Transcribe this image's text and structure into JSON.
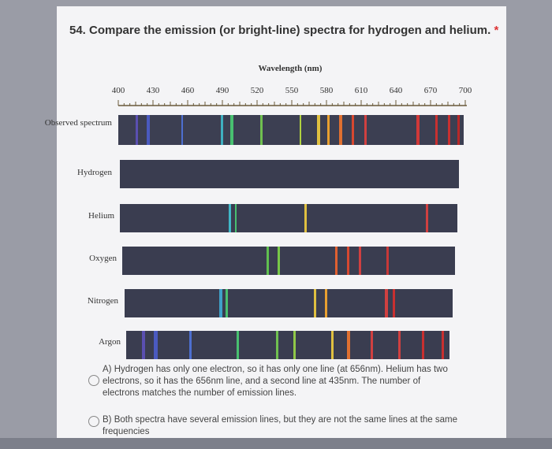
{
  "question": {
    "title": "54. Compare the emission (or bright-line) spectra for hydrogen and helium.",
    "required": "*"
  },
  "axis": {
    "label": "Wavelength (nm)",
    "ticks": [
      "400",
      "430",
      "460",
      "490",
      "520",
      "550",
      "580",
      "610",
      "640",
      "670",
      "700"
    ]
  },
  "spectra": [
    {
      "label": "Observed spectrum"
    },
    {
      "label": "Hydrogen"
    },
    {
      "label": "Helium"
    },
    {
      "label": "Oxygen"
    },
    {
      "label": "Nitrogen"
    },
    {
      "label": "Argon"
    }
  ],
  "options": [
    {
      "text": "A) Hydrogen has only one electron, so it has only one line (at 656nm). Helium has two electrons, so it has the 656nm line, and a second line at 435nm. The number of electrons matches the number of emission lines."
    },
    {
      "text": "B) Both spectra have several emission lines, but they are not the same lines at the same frequencies"
    }
  ]
}
